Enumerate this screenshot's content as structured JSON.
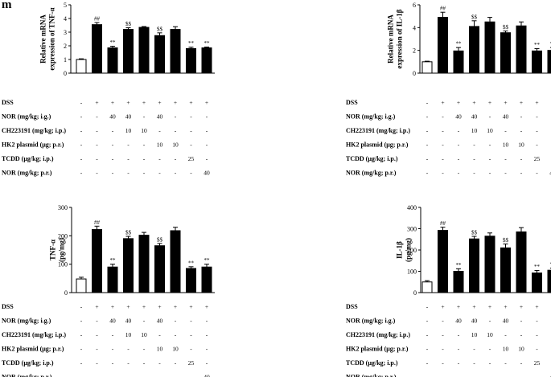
{
  "figure": {
    "panel_label": "m"
  },
  "conditions": [
    {
      "label": "DSS",
      "symbols": [
        "-",
        "+",
        "+",
        "+",
        "+",
        "+",
        "+",
        "+",
        "+"
      ]
    },
    {
      "label": "NOR (mg/kg; i.g.)",
      "symbols": [
        "-",
        "-",
        "40",
        "40",
        "-",
        "40",
        "-",
        "-",
        "-"
      ]
    },
    {
      "label": "CH223191 (mg/kg; i.p.)",
      "symbols": [
        "-",
        "-",
        "-",
        "10",
        "10",
        "-",
        "-",
        "-",
        "-"
      ]
    },
    {
      "label": "HK2 plasmid (μg; p.r.)",
      "symbols": [
        "-",
        "-",
        "-",
        "-",
        "-",
        "10",
        "10",
        "-",
        "-"
      ]
    },
    {
      "label": "TCDD (μg/kg; i.p.)",
      "symbols": [
        "-",
        "-",
        "-",
        "-",
        "-",
        "-",
        "-",
        "25",
        "-"
      ]
    },
    {
      "label": "NOR (mg/kg; p.r.)",
      "symbols": [
        "-",
        "-",
        "-",
        "-",
        "-",
        "-",
        "-",
        "-",
        "40"
      ]
    }
  ],
  "chart_data": [
    {
      "type": "bar",
      "ylabel": [
        "Relative mRNA",
        "expression of TNF-α"
      ],
      "ylim": [
        0,
        5
      ],
      "yticks": [
        0,
        1,
        2,
        3,
        4,
        5
      ],
      "values": [
        1.0,
        3.55,
        1.85,
        3.2,
        3.35,
        2.75,
        3.2,
        1.8,
        1.85
      ],
      "errors": [
        0.05,
        0.15,
        0.12,
        0.12,
        0.06,
        0.2,
        0.2,
        0.1,
        0.06
      ],
      "annotations": [
        "",
        "##",
        "**",
        "$$",
        "",
        "$$",
        "",
        "**",
        "**"
      ]
    },
    {
      "type": "bar",
      "ylabel": [
        "Relative mRNA",
        "expression of IL-1β"
      ],
      "ylim": [
        0,
        6
      ],
      "yticks": [
        0,
        2,
        4,
        6
      ],
      "values": [
        1.0,
        4.9,
        1.95,
        4.1,
        4.5,
        3.55,
        4.15,
        1.95,
        2.0
      ],
      "errors": [
        0.05,
        0.45,
        0.3,
        0.5,
        0.4,
        0.15,
        0.35,
        0.2,
        0.25
      ],
      "annotations": [
        "",
        "##",
        "**",
        "$$",
        "",
        "$$",
        "",
        "**",
        "**"
      ]
    },
    {
      "type": "bar",
      "ylabel": [
        "TNF-α",
        "(pg/mg)"
      ],
      "ylim": [
        0,
        300
      ],
      "yticks": [
        0,
        100,
        200,
        300
      ],
      "values": [
        48,
        222,
        90,
        190,
        202,
        165,
        218,
        85,
        90
      ],
      "errors": [
        6,
        12,
        10,
        8,
        10,
        8,
        12,
        6,
        10
      ],
      "annotations": [
        "",
        "##",
        "**",
        "$$",
        "",
        "$$",
        "",
        "**",
        "**"
      ]
    },
    {
      "type": "bar",
      "ylabel": [
        "IL-1β",
        "(pg/mg)"
      ],
      "ylim": [
        0,
        400
      ],
      "yticks": [
        0,
        100,
        200,
        300,
        400
      ],
      "values": [
        50,
        292,
        100,
        252,
        265,
        210,
        285,
        92,
        105
      ],
      "errors": [
        6,
        15,
        12,
        12,
        15,
        18,
        20,
        12,
        10
      ],
      "annotations": [
        "",
        "##",
        "**",
        "$$",
        "",
        "$$",
        "",
        "**",
        "**"
      ]
    }
  ]
}
